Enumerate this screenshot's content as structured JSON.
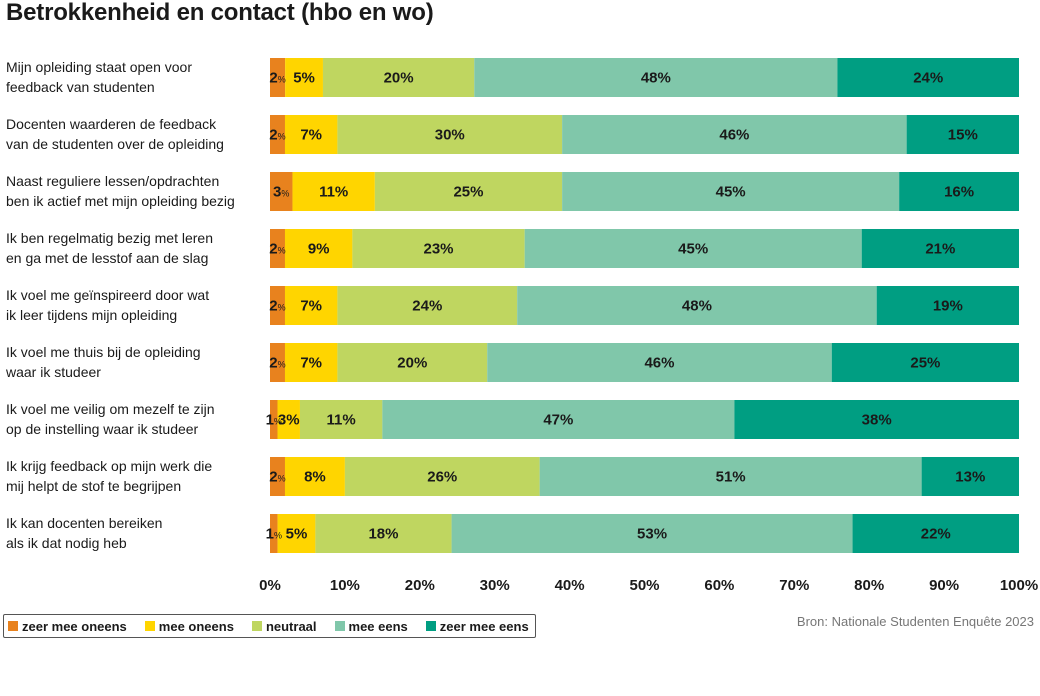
{
  "title": "Betrokkenheid en contact (hbo en wo)",
  "source": "Bron: Nationale Studenten Enquête 2023",
  "colors": [
    "#E8821E",
    "#FFD500",
    "#BFD660",
    "#80C7AA",
    "#009E82"
  ],
  "chart_data": {
    "type": "bar",
    "orientation": "horizontal",
    "stacked": true,
    "title": "Betrokkenheid en contact (hbo en wo)",
    "xlim": [
      0,
      100
    ],
    "xticks": [
      "0%",
      "10%",
      "20%",
      "30%",
      "40%",
      "50%",
      "60%",
      "70%",
      "80%",
      "90%",
      "100%"
    ],
    "legend_position": "bottom-left",
    "categories": [
      [
        "Mijn opleiding staat open voor",
        "feedback van studenten"
      ],
      [
        "Docenten waarderen de feedback",
        "van de studenten over de opleiding"
      ],
      [
        "Naast reguliere lessen/opdrachten",
        "ben ik actief met mijn opleiding bezig"
      ],
      [
        "Ik ben regelmatig bezig met leren",
        "en ga met de lesstof aan de slag"
      ],
      [
        "Ik voel me geïnspireerd door wat",
        "ik leer tijdens mijn opleiding"
      ],
      [
        "Ik voel me thuis bij de opleiding",
        "waar ik studeer"
      ],
      [
        "Ik voel me veilig om mezelf te zijn",
        "op de instelling waar ik studeer"
      ],
      [
        "Ik krijg feedback op mijn werk die",
        "mij helpt de stof te begrijpen"
      ],
      [
        "Ik kan docenten bereiken",
        "als ik dat nodig heb"
      ]
    ],
    "series": [
      {
        "name": "zeer mee oneens",
        "color": "#E8821E",
        "values": [
          2,
          2,
          3,
          2,
          2,
          2,
          1,
          2,
          1
        ],
        "labels": [
          "2%",
          "2%",
          "3%",
          "2%",
          "2%",
          "2%",
          "1%",
          "2%",
          "1%"
        ]
      },
      {
        "name": "mee oneens",
        "color": "#FFD500",
        "values": [
          5,
          7,
          11,
          9,
          7,
          7,
          3,
          8,
          5
        ],
        "labels": [
          "5%",
          "7%",
          "11%",
          "9%",
          "7%",
          "7%",
          "3%",
          "8%",
          "5%"
        ]
      },
      {
        "name": "neutraal",
        "color": "#BFD660",
        "values": [
          20,
          30,
          25,
          23,
          24,
          20,
          11,
          26,
          18
        ],
        "labels": [
          "20%",
          "30%",
          "25%",
          "23%",
          "24%",
          "20%",
          "11%",
          "26%",
          "18%"
        ]
      },
      {
        "name": "mee eens",
        "color": "#80C7AA",
        "values": [
          48,
          46,
          45,
          45,
          48,
          46,
          47,
          51,
          53
        ],
        "labels": [
          "48%",
          "46%",
          "45%",
          "45%",
          "48%",
          "46%",
          "47%",
          "51%",
          "53%"
        ]
      },
      {
        "name": "zeer mee eens",
        "color": "#009E82",
        "values": [
          24,
          15,
          16,
          21,
          19,
          25,
          38,
          13,
          22
        ],
        "labels": [
          "24%",
          "15%",
          "16%",
          "21%",
          "19%",
          "25%",
          "38%",
          "13%",
          "22%"
        ]
      }
    ]
  }
}
